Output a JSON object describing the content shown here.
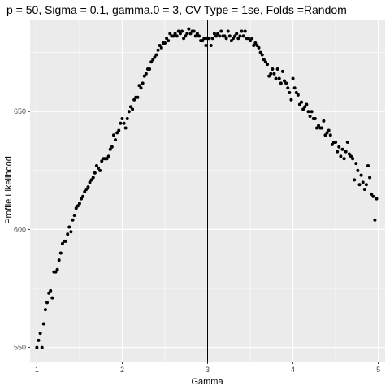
{
  "chart_data": {
    "type": "scatter",
    "title": "p = 50, Sigma = 0.1, gamma.0 = 3, CV Type = 1se, Folds =Random",
    "xlabel": "Gamma",
    "ylabel": "Profile Likelihood",
    "xlim": [
      0.92,
      5.08
    ],
    "ylim": [
      544,
      689
    ],
    "x_ticks": [
      1,
      2,
      3,
      4,
      5
    ],
    "x_tick_labels": [
      "1",
      "2",
      "3",
      "4",
      "5"
    ],
    "y_ticks": [
      550,
      600,
      650
    ],
    "y_tick_labels": [
      "550",
      "600",
      "650"
    ],
    "vline_x": 3,
    "grid": true,
    "panel_color": "#ebebeb",
    "grid_color": "#ffffff",
    "point_color": "#000000",
    "series": [
      {
        "points": [
          [
            1.0,
            550
          ],
          [
            1.02,
            553
          ],
          [
            1.04,
            556
          ],
          [
            1.06,
            550
          ],
          [
            1.08,
            560
          ],
          [
            1.1,
            566
          ],
          [
            1.12,
            569
          ],
          [
            1.14,
            573
          ],
          [
            1.16,
            574
          ],
          [
            1.18,
            571
          ],
          [
            1.2,
            582
          ],
          [
            1.22,
            582
          ],
          [
            1.24,
            583
          ],
          [
            1.26,
            587
          ],
          [
            1.28,
            590
          ],
          [
            1.3,
            594
          ],
          [
            1.32,
            595
          ],
          [
            1.34,
            595
          ],
          [
            1.36,
            598
          ],
          [
            1.38,
            601
          ],
          [
            1.4,
            599
          ],
          [
            1.42,
            604
          ],
          [
            1.44,
            606
          ],
          [
            1.46,
            609
          ],
          [
            1.48,
            610
          ],
          [
            1.5,
            611
          ],
          [
            1.52,
            613
          ],
          [
            1.54,
            614
          ],
          [
            1.56,
            616
          ],
          [
            1.58,
            617
          ],
          [
            1.6,
            618
          ],
          [
            1.62,
            620
          ],
          [
            1.64,
            621
          ],
          [
            1.66,
            622
          ],
          [
            1.68,
            624
          ],
          [
            1.7,
            627
          ],
          [
            1.72,
            626
          ],
          [
            1.74,
            625
          ],
          [
            1.76,
            629
          ],
          [
            1.78,
            630
          ],
          [
            1.8,
            630
          ],
          [
            1.82,
            630
          ],
          [
            1.84,
            631
          ],
          [
            1.86,
            634
          ],
          [
            1.88,
            635
          ],
          [
            1.9,
            640
          ],
          [
            1.92,
            638
          ],
          [
            1.94,
            641
          ],
          [
            1.96,
            642
          ],
          [
            1.98,
            645
          ],
          [
            2.0,
            647
          ],
          [
            2.02,
            645
          ],
          [
            2.04,
            643
          ],
          [
            2.06,
            647
          ],
          [
            2.08,
            650
          ],
          [
            2.1,
            652
          ],
          [
            2.12,
            651
          ],
          [
            2.14,
            655
          ],
          [
            2.16,
            656
          ],
          [
            2.18,
            656
          ],
          [
            2.2,
            661
          ],
          [
            2.22,
            660
          ],
          [
            2.24,
            662
          ],
          [
            2.26,
            665
          ],
          [
            2.28,
            666
          ],
          [
            2.3,
            668
          ],
          [
            2.32,
            668
          ],
          [
            2.34,
            671
          ],
          [
            2.36,
            672
          ],
          [
            2.38,
            673
          ],
          [
            2.4,
            674
          ],
          [
            2.42,
            676
          ],
          [
            2.44,
            678
          ],
          [
            2.46,
            677
          ],
          [
            2.48,
            679
          ],
          [
            2.5,
            679
          ],
          [
            2.52,
            681
          ],
          [
            2.54,
            680
          ],
          [
            2.56,
            683
          ],
          [
            2.58,
            682
          ],
          [
            2.6,
            682
          ],
          [
            2.62,
            683
          ],
          [
            2.64,
            682
          ],
          [
            2.66,
            684
          ],
          [
            2.68,
            683
          ],
          [
            2.7,
            684
          ],
          [
            2.72,
            681
          ],
          [
            2.74,
            682
          ],
          [
            2.76,
            683
          ],
          [
            2.78,
            685
          ],
          [
            2.8,
            683
          ],
          [
            2.82,
            684
          ],
          [
            2.84,
            684
          ],
          [
            2.86,
            682
          ],
          [
            2.88,
            683
          ],
          [
            2.9,
            682
          ],
          [
            2.92,
            680
          ],
          [
            2.94,
            680
          ],
          [
            2.96,
            681
          ],
          [
            2.98,
            678
          ],
          [
            3.0,
            681
          ],
          [
            3.02,
            681
          ],
          [
            3.04,
            678
          ],
          [
            3.06,
            681
          ],
          [
            3.08,
            683
          ],
          [
            3.1,
            682
          ],
          [
            3.12,
            683
          ],
          [
            3.14,
            682
          ],
          [
            3.16,
            684
          ],
          [
            3.18,
            682
          ],
          [
            3.2,
            682
          ],
          [
            3.22,
            681
          ],
          [
            3.24,
            684
          ],
          [
            3.26,
            682
          ],
          [
            3.28,
            680
          ],
          [
            3.3,
            681
          ],
          [
            3.32,
            682
          ],
          [
            3.34,
            683
          ],
          [
            3.36,
            681
          ],
          [
            3.38,
            682
          ],
          [
            3.4,
            684
          ],
          [
            3.42,
            682
          ],
          [
            3.44,
            684
          ],
          [
            3.46,
            681
          ],
          [
            3.48,
            681
          ],
          [
            3.5,
            680
          ],
          [
            3.52,
            681
          ],
          [
            3.54,
            678
          ],
          [
            3.56,
            679
          ],
          [
            3.58,
            678
          ],
          [
            3.6,
            677
          ],
          [
            3.62,
            675
          ],
          [
            3.64,
            674
          ],
          [
            3.66,
            672
          ],
          [
            3.68,
            671
          ],
          [
            3.7,
            670
          ],
          [
            3.72,
            665
          ],
          [
            3.74,
            666
          ],
          [
            3.76,
            668
          ],
          [
            3.78,
            666
          ],
          [
            3.8,
            664
          ],
          [
            3.82,
            668
          ],
          [
            3.84,
            664
          ],
          [
            3.86,
            662
          ],
          [
            3.88,
            667
          ],
          [
            3.9,
            663
          ],
          [
            3.92,
            662
          ],
          [
            3.94,
            660
          ],
          [
            3.96,
            658
          ],
          [
            3.98,
            655
          ],
          [
            4.0,
            664
          ],
          [
            4.02,
            660
          ],
          [
            4.04,
            658
          ],
          [
            4.06,
            657
          ],
          [
            4.08,
            653
          ],
          [
            4.1,
            654
          ],
          [
            4.12,
            651
          ],
          [
            4.14,
            652
          ],
          [
            4.16,
            653
          ],
          [
            4.18,
            650
          ],
          [
            4.2,
            648
          ],
          [
            4.22,
            650
          ],
          [
            4.24,
            647
          ],
          [
            4.26,
            647
          ],
          [
            4.28,
            643
          ],
          [
            4.3,
            644
          ],
          [
            4.32,
            643
          ],
          [
            4.34,
            643
          ],
          [
            4.36,
            646
          ],
          [
            4.38,
            640
          ],
          [
            4.4,
            641
          ],
          [
            4.42,
            642
          ],
          [
            4.44,
            640
          ],
          [
            4.46,
            636
          ],
          [
            4.48,
            637
          ],
          [
            4.5,
            637
          ],
          [
            4.52,
            633
          ],
          [
            4.54,
            635
          ],
          [
            4.56,
            631
          ],
          [
            4.58,
            634
          ],
          [
            4.6,
            630
          ],
          [
            4.62,
            633
          ],
          [
            4.64,
            637
          ],
          [
            4.66,
            632
          ],
          [
            4.68,
            631
          ],
          [
            4.7,
            630
          ],
          [
            4.72,
            621
          ],
          [
            4.74,
            628
          ],
          [
            4.76,
            625
          ],
          [
            4.78,
            619
          ],
          [
            4.8,
            623
          ],
          [
            4.82,
            620
          ],
          [
            4.84,
            617
          ],
          [
            4.86,
            619
          ],
          [
            4.88,
            627
          ],
          [
            4.9,
            622
          ],
          [
            4.92,
            615
          ],
          [
            4.94,
            614
          ],
          [
            4.96,
            604
          ],
          [
            4.98,
            613
          ]
        ]
      }
    ]
  }
}
